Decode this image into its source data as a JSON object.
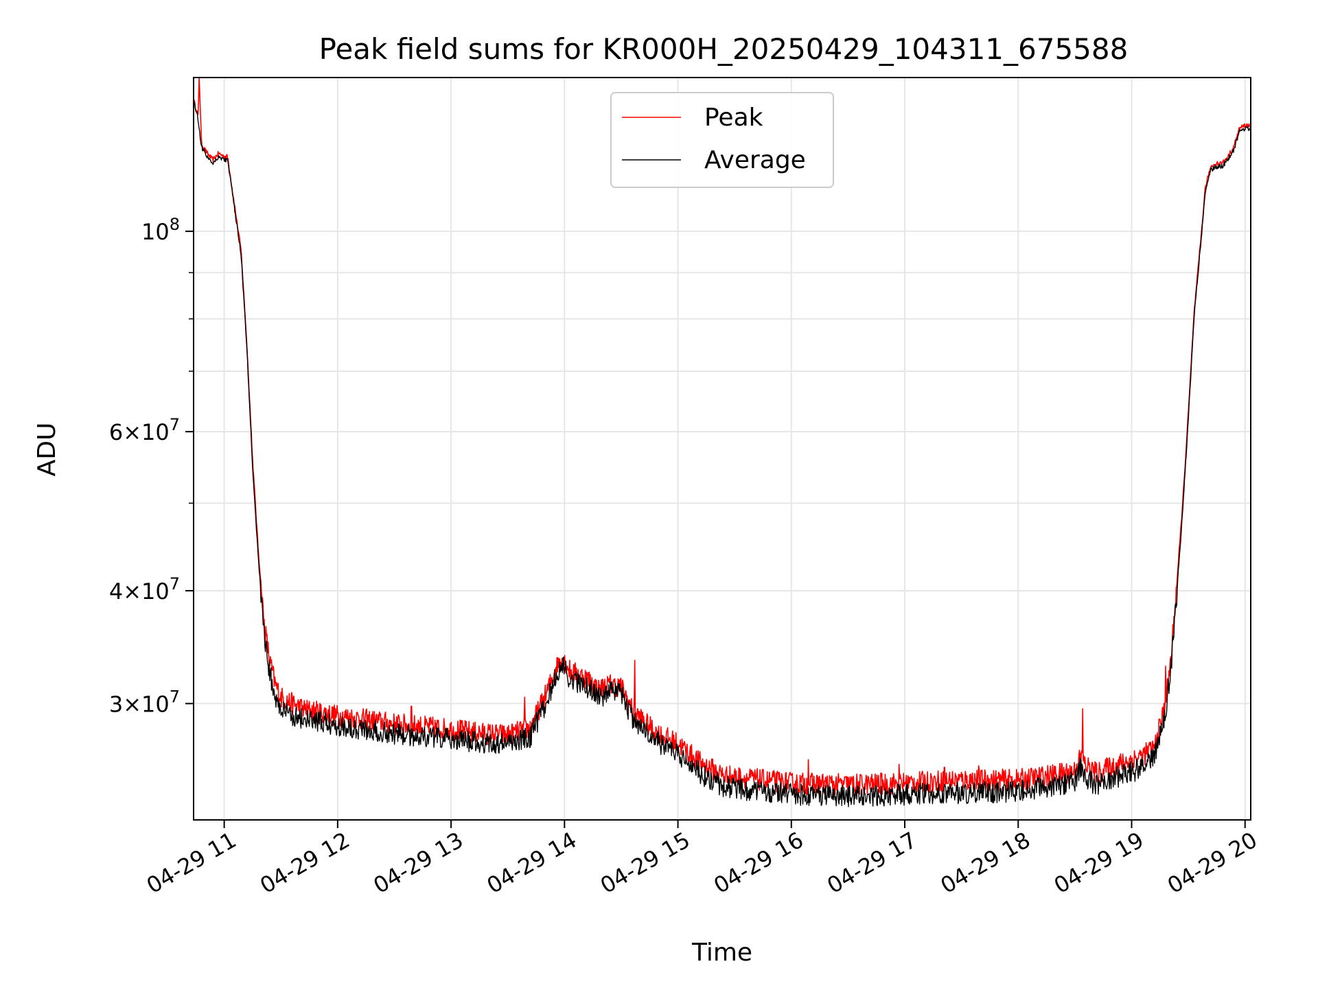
{
  "chart_data": {
    "type": "line",
    "title": "Peak field sums for KR000H_20250429_104311_675588",
    "xlabel": "Time",
    "ylabel": "ADU",
    "y_scale": "log",
    "ylim": [
      22300000,
      148000000
    ],
    "xlim": [
      10.73,
      20.05
    ],
    "grid": true,
    "legend": {
      "location": "upper center",
      "entries": [
        "Peak",
        "Average"
      ]
    },
    "x_ticks": [
      {
        "value": 11,
        "label": "04-29 11"
      },
      {
        "value": 12,
        "label": "04-29 12"
      },
      {
        "value": 13,
        "label": "04-29 13"
      },
      {
        "value": 14,
        "label": "04-29 14"
      },
      {
        "value": 15,
        "label": "04-29 15"
      },
      {
        "value": 16,
        "label": "04-29 16"
      },
      {
        "value": 17,
        "label": "04-29 17"
      },
      {
        "value": 18,
        "label": "04-29 18"
      },
      {
        "value": 19,
        "label": "04-29 19"
      },
      {
        "value": 20,
        "label": "04-29 20"
      }
    ],
    "y_major_ticks": [
      {
        "value": 30000000,
        "mant": "3",
        "exp": "7"
      },
      {
        "value": 40000000,
        "mant": "4",
        "exp": "7"
      },
      {
        "value": 60000000,
        "mant": "6",
        "exp": "7"
      },
      {
        "value": 100000000,
        "mant": "",
        "exp": "8"
      }
    ],
    "y_minor_ticks": [
      50000000,
      70000000,
      80000000,
      90000000
    ],
    "series": [
      {
        "name": "Peak",
        "color": "#ff0000",
        "x": [
          10.73,
          10.77,
          10.78,
          10.8,
          10.85,
          10.9,
          10.95,
          11.0,
          11.03,
          11.1,
          11.15,
          11.2,
          11.25,
          11.3,
          11.35,
          11.4,
          11.45,
          11.5,
          11.6,
          11.7,
          12.0,
          12.5,
          13.0,
          13.3,
          13.5,
          13.7,
          13.85,
          13.97,
          14.05,
          14.2,
          14.3,
          14.4,
          14.5,
          14.6,
          14.8,
          15.0,
          15.2,
          15.4,
          15.6,
          16.0,
          16.5,
          17.0,
          17.5,
          18.0,
          18.3,
          18.5,
          18.55,
          18.6,
          18.7,
          18.8,
          19.0,
          19.1,
          19.2,
          19.3,
          19.35,
          19.4,
          19.45,
          19.5,
          19.55,
          19.6,
          19.65,
          19.7,
          19.75,
          19.8,
          19.85,
          19.9,
          19.95,
          20.0,
          20.05
        ],
        "y": [
          140000000,
          134000000,
          148000000,
          125000000,
          122000000,
          120000000,
          122000000,
          121000000,
          121000000,
          105000000,
          95000000,
          75000000,
          56000000,
          44500000,
          37000000,
          33500000,
          31500000,
          30500000,
          30000000,
          29600000,
          29100000,
          28500000,
          28100000,
          27800000,
          27700000,
          28200000,
          31000000,
          33900000,
          32600000,
          32000000,
          31100000,
          31500000,
          31300000,
          29500000,
          27900000,
          27100000,
          25800000,
          25000000,
          24800000,
          24500000,
          24400000,
          24500000,
          24700000,
          24700000,
          25000000,
          25300000,
          26200000,
          25600000,
          25100000,
          25500000,
          26000000,
          26300000,
          26800000,
          30000000,
          34000000,
          41000000,
          50000000,
          63000000,
          81000000,
          95000000,
          112000000,
          118000000,
          119000000,
          119000000,
          121000000,
          124000000,
          130000000,
          131000000,
          131000000
        ],
        "spikes": [
          {
            "x": 10.78,
            "y": 148000000
          },
          {
            "x": 12.65,
            "y": 29800000
          },
          {
            "x": 13.65,
            "y": 30500000
          },
          {
            "x": 14.62,
            "y": 33500000
          },
          {
            "x": 16.15,
            "y": 26000000
          },
          {
            "x": 16.95,
            "y": 25700000
          },
          {
            "x": 17.35,
            "y": 25500000
          },
          {
            "x": 17.65,
            "y": 25600000
          },
          {
            "x": 18.57,
            "y": 29600000
          },
          {
            "x": 19.3,
            "y": 33000000
          }
        ]
      },
      {
        "name": "Average",
        "color": "#000000",
        "x": [
          10.73,
          10.77,
          10.8,
          10.85,
          10.9,
          10.95,
          11.0,
          11.03,
          11.1,
          11.15,
          11.2,
          11.25,
          11.3,
          11.35,
          11.4,
          11.45,
          11.5,
          11.6,
          11.7,
          12.0,
          12.5,
          13.0,
          13.3,
          13.5,
          13.7,
          13.85,
          13.97,
          14.05,
          14.2,
          14.3,
          14.4,
          14.5,
          14.6,
          14.8,
          15.0,
          15.2,
          15.4,
          15.6,
          16.0,
          16.5,
          17.0,
          17.5,
          18.0,
          18.3,
          18.5,
          18.55,
          18.6,
          18.7,
          18.8,
          19.0,
          19.1,
          19.2,
          19.3,
          19.35,
          19.4,
          19.45,
          19.5,
          19.55,
          19.6,
          19.65,
          19.7,
          19.75,
          19.8,
          19.85,
          19.9,
          19.95,
          20.0,
          20.05
        ],
        "y": [
          140000000,
          133000000,
          124000000,
          121000000,
          119000000,
          121000000,
          120000000,
          120000000,
          104000000,
          94000000,
          74000000,
          55000000,
          43500000,
          36000000,
          32500000,
          30500000,
          29500000,
          29100000,
          28800000,
          28400000,
          27800000,
          27400000,
          27100000,
          27100000,
          27600000,
          30300000,
          33300000,
          31900000,
          31300000,
          30500000,
          30900000,
          30700000,
          28900000,
          27300000,
          26400000,
          25100000,
          24300000,
          24100000,
          23800000,
          23700000,
          23800000,
          23900000,
          24000000,
          24300000,
          24600000,
          25500000,
          24800000,
          24300000,
          24700000,
          25200000,
          25500000,
          26100000,
          29300000,
          33200000,
          40000000,
          49000000,
          62000000,
          80000000,
          94000000,
          111000000,
          117000000,
          118000000,
          118000000,
          120000000,
          123000000,
          129000000,
          130000000,
          130000000
        ]
      }
    ]
  }
}
